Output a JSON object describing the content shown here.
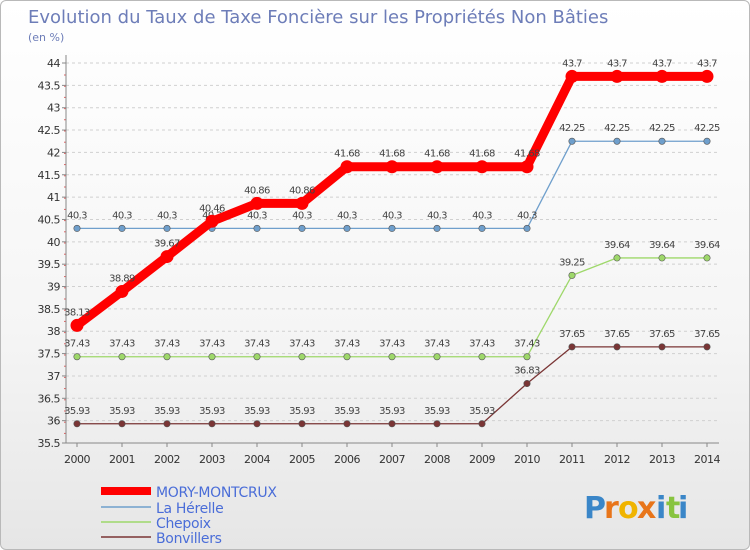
{
  "chart_data": {
    "type": "line",
    "title": "Evolution du Taux de Taxe Foncière sur les Propriétés Non Bâties",
    "subtitle": "(en %)",
    "x": [
      "2000",
      "2001",
      "2002",
      "2003",
      "2004",
      "2005",
      "2006",
      "2007",
      "2008",
      "2009",
      "2010",
      "2011",
      "2012",
      "2013",
      "2014"
    ],
    "ylim": [
      35.5,
      44
    ],
    "yticks": [
      "35.5",
      "36",
      "36.5",
      "37",
      "37.5",
      "38",
      "38.5",
      "39",
      "39.5",
      "40",
      "40.5",
      "41",
      "41.5",
      "42",
      "42.5",
      "43",
      "43.5",
      "44"
    ],
    "ytick_values": [
      35.5,
      36,
      36.5,
      37,
      37.5,
      38,
      38.5,
      39,
      39.5,
      40,
      40.5,
      41,
      41.5,
      42,
      42.5,
      43,
      43.5,
      44
    ],
    "grid": "horizontal dashed",
    "legend_position": "bottom-left",
    "series": [
      {
        "name": "MORY-MONTCRUX",
        "color": "#ff0000",
        "values": [
          38.13,
          38.89,
          39.67,
          40.46,
          40.86,
          40.86,
          41.68,
          41.68,
          41.68,
          41.68,
          41.68,
          43.7,
          43.7,
          43.7,
          43.7
        ],
        "labels": [
          "38.13",
          "38.89",
          "39.67",
          "40.46",
          "40.86",
          "40.86",
          "41.68",
          "41.68",
          "41.68",
          "41.68",
          "41.68",
          "43.7",
          "43.7",
          "43.7",
          "43.7"
        ]
      },
      {
        "name": "La Hérelle",
        "color": "#6f9fcc",
        "values": [
          40.3,
          40.3,
          40.3,
          40.3,
          40.3,
          40.3,
          40.3,
          40.3,
          40.3,
          40.3,
          40.3,
          42.25,
          42.25,
          42.25,
          42.25
        ],
        "labels": [
          "40.3",
          "40.3",
          "40.3",
          "40.3",
          "40.3",
          "40.3",
          "40.3",
          "40.3",
          "40.3",
          "40.3",
          "40.3",
          "42.25",
          "42.25",
          "42.25",
          "42.25"
        ]
      },
      {
        "name": "Chepoix",
        "color": "#9ed86a",
        "values": [
          37.43,
          37.43,
          37.43,
          37.43,
          37.43,
          37.43,
          37.43,
          37.43,
          37.43,
          37.43,
          37.43,
          39.25,
          39.64,
          39.64,
          39.64
        ],
        "labels": [
          "37.43",
          "37.43",
          "37.43",
          "37.43",
          "37.43",
          "37.43",
          "37.43",
          "37.43",
          "37.43",
          "37.43",
          "37.43",
          "39.25",
          "39.64",
          "39.64",
          "39.64"
        ]
      },
      {
        "name": "Bonvillers",
        "color": "#7a3535",
        "values": [
          35.93,
          35.93,
          35.93,
          35.93,
          35.93,
          35.93,
          35.93,
          35.93,
          35.93,
          35.93,
          36.83,
          37.65,
          37.65,
          37.65,
          37.65
        ],
        "labels": [
          "35.93",
          "35.93",
          "35.93",
          "35.93",
          "35.93",
          "35.93",
          "35.93",
          "35.93",
          "35.93",
          "35.93",
          "36.83",
          "37.65",
          "37.65",
          "37.65",
          "37.65"
        ]
      }
    ],
    "brand": {
      "text": "Proxiti",
      "letters": [
        "P",
        "r",
        "o",
        "x",
        "i",
        "t",
        "i"
      ],
      "colors": [
        "#3a86c8",
        "#e8751a",
        "#f0b400",
        "#e8751a",
        "#3a86c8",
        "#88c440",
        "#3a86c8"
      ]
    }
  }
}
